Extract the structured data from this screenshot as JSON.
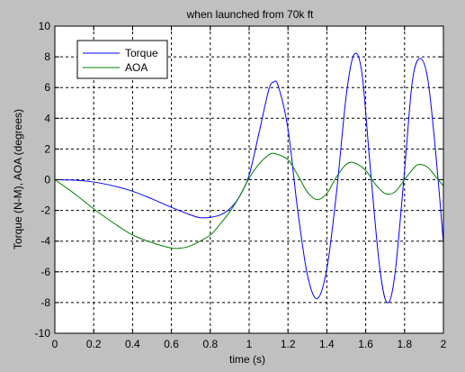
{
  "figure": {
    "background": "#c0c0c0",
    "plot_background": "#ffffff"
  },
  "chart_data": {
    "type": "line",
    "title": "when launched from 70k ft",
    "xlabel": "time (s)",
    "ylabel": "Torque (N-M), AOA (degrees)",
    "xlim": [
      0,
      2
    ],
    "ylim": [
      -10,
      10
    ],
    "xticks": [
      "0",
      "0.2",
      "0.4",
      "0.6",
      "0.8",
      "1",
      "1.2",
      "1.4",
      "1.6",
      "1.8",
      "2"
    ],
    "yticks": [
      "-10",
      "-8",
      "-6",
      "-4",
      "-2",
      "0",
      "2",
      "4",
      "6",
      "8",
      "10"
    ],
    "grid": true,
    "legend_position": "top-left",
    "series": [
      {
        "name": "Torque",
        "color": "#0000ff",
        "x": [
          0,
          0.1,
          0.2,
          0.3,
          0.4,
          0.5,
          0.6,
          0.7,
          0.75,
          0.8,
          0.85,
          0.9,
          0.95,
          1.0,
          1.05,
          1.1,
          1.125,
          1.15,
          1.2,
          1.25,
          1.3,
          1.35,
          1.4,
          1.45,
          1.5,
          1.54,
          1.58,
          1.62,
          1.67,
          1.71,
          1.75,
          1.8,
          1.84,
          1.88,
          1.92,
          1.96,
          2.0
        ],
        "y": [
          0,
          -0.03,
          -0.15,
          -0.4,
          -0.75,
          -1.25,
          -1.8,
          -2.3,
          -2.48,
          -2.45,
          -2.3,
          -1.9,
          -1.1,
          0.3,
          3.0,
          5.8,
          6.35,
          6.1,
          3.3,
          -2.0,
          -6.2,
          -7.75,
          -5.8,
          -0.8,
          5.5,
          8.15,
          7.0,
          1.3,
          -5.5,
          -8.0,
          -6.2,
          0.6,
          6.4,
          7.9,
          6.5,
          1.8,
          -4.1
        ]
      },
      {
        "name": "AOA",
        "color": "#008000",
        "x": [
          0,
          0.1,
          0.2,
          0.3,
          0.4,
          0.5,
          0.6,
          0.65,
          0.7,
          0.8,
          0.85,
          0.9,
          0.95,
          1.0,
          1.05,
          1.1,
          1.13,
          1.2,
          1.25,
          1.3,
          1.35,
          1.4,
          1.45,
          1.5,
          1.54,
          1.6,
          1.65,
          1.7,
          1.75,
          1.8,
          1.85,
          1.88,
          1.92,
          1.96,
          2.0
        ],
        "y": [
          0,
          -0.9,
          -1.9,
          -2.8,
          -3.6,
          -4.1,
          -4.45,
          -4.45,
          -4.3,
          -3.6,
          -2.9,
          -2.1,
          -1.1,
          0.1,
          1.0,
          1.6,
          1.7,
          1.3,
          0.3,
          -0.8,
          -1.3,
          -0.9,
          0.2,
          1.0,
          1.1,
          0.6,
          -0.3,
          -0.9,
          -0.8,
          0.0,
          0.8,
          1.0,
          0.8,
          0.2,
          -0.4
        ]
      }
    ]
  }
}
